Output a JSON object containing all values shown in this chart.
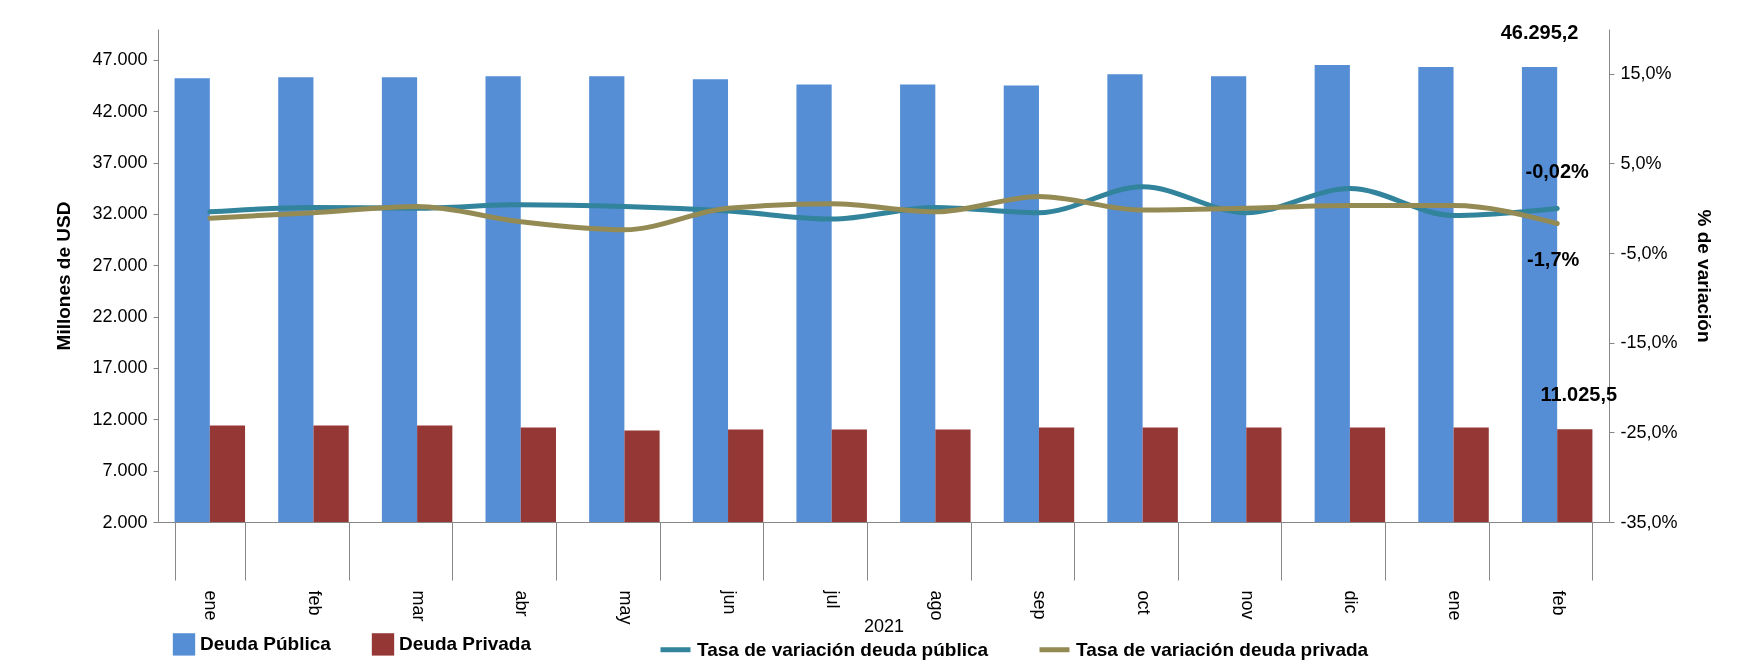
{
  "chart_data": {
    "type": "bar",
    "categories": [
      "ene",
      "feb",
      "mar",
      "abr",
      "may",
      "jun",
      "jul",
      "ago",
      "sep",
      "oct",
      "nov",
      "dic",
      "ene",
      "feb"
    ],
    "series": [
      {
        "name": "Deuda Pública",
        "color": "#558ed5",
        "values": [
          45200,
          45300,
          45300,
          45400,
          45400,
          45100,
          44600,
          44600,
          44500,
          45600,
          45400,
          46500,
          46300,
          46295.2
        ],
        "value_labels": [
          null,
          null,
          null,
          null,
          null,
          null,
          null,
          null,
          null,
          null,
          null,
          null,
          null,
          "46.295,2"
        ]
      },
      {
        "name": "Deuda Privada",
        "color": "#953735",
        "values": [
          11400,
          11400,
          11400,
          11200,
          10900,
          11000,
          11000,
          11000,
          11200,
          11200,
          11200,
          11200,
          11200,
          11025.5
        ],
        "value_labels": [
          null,
          null,
          null,
          null,
          null,
          null,
          null,
          null,
          null,
          null,
          null,
          null,
          null,
          "11.025,5"
        ]
      },
      {
        "name": "Tasa de variación deuda pública",
        "type": "line",
        "axis": "y2",
        "color": "#31849b",
        "values": [
          -0.4,
          0.1,
          0.0,
          0.4,
          0.2,
          -0.3,
          -1.2,
          0.1,
          -0.5,
          2.4,
          -0.5,
          2.2,
          -0.8,
          -0.02
        ],
        "value_labels": [
          null,
          null,
          null,
          null,
          null,
          null,
          null,
          null,
          null,
          null,
          null,
          null,
          null,
          "-0,02%"
        ]
      },
      {
        "name": "Tasa de variación deuda privada",
        "type": "line",
        "axis": "y2",
        "color": "#948a54",
        "values": [
          -1.1,
          -0.5,
          0.2,
          -1.5,
          -2.4,
          0.0,
          0.5,
          -0.4,
          1.3,
          -0.2,
          0.0,
          0.3,
          0.3,
          -1.7
        ],
        "value_labels": [
          null,
          null,
          null,
          null,
          null,
          null,
          null,
          null,
          null,
          null,
          null,
          null,
          null,
          "-1,7%"
        ]
      }
    ],
    "ylabel": "Millones de USD",
    "y2label": "% de variación",
    "ylim": [
      2000,
      50000
    ],
    "yticks": [
      {
        "value": 2000,
        "label": "2.000"
      },
      {
        "value": 7000,
        "label": "7.000"
      },
      {
        "value": 12000,
        "label": "12.000"
      },
      {
        "value": 17000,
        "label": "17.000"
      },
      {
        "value": 22000,
        "label": "22.000"
      },
      {
        "value": 27000,
        "label": "27.000"
      },
      {
        "value": 32000,
        "label": "32.000"
      },
      {
        "value": 37000,
        "label": "37.000"
      },
      {
        "value": 42000,
        "label": "42.000"
      },
      {
        "value": 47000,
        "label": "47.000"
      }
    ],
    "y2lim": [
      -35,
      20
    ],
    "y2ticks": [
      {
        "value": -35,
        "label": "-35,0%"
      },
      {
        "value": -25,
        "label": "-25,0%"
      },
      {
        "value": -15,
        "label": "-15,0%"
      },
      {
        "value": -5,
        "label": "-5,0%"
      },
      {
        "value": 5,
        "label": "5,0%"
      },
      {
        "value": 15,
        "label": "15,0%"
      }
    ],
    "annotations": [
      "2021"
    ],
    "legend": "bottom",
    "grid": false
  }
}
